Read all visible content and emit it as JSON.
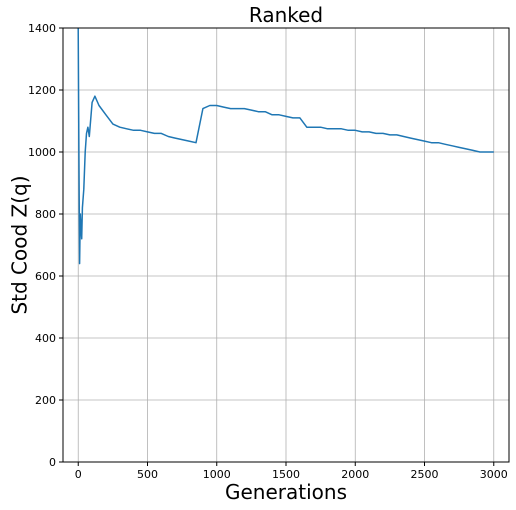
{
  "chart_data": {
    "type": "line",
    "title": "Ranked",
    "xlabel": "Generations",
    "ylabel": "Std Cood Z(q)",
    "xlim": [
      -110,
      3110
    ],
    "ylim": [
      0,
      1400
    ],
    "xticks": [
      0,
      500,
      1000,
      1500,
      2000,
      2500,
      3000
    ],
    "yticks": [
      0,
      200,
      400,
      600,
      800,
      1000,
      1200,
      1400
    ],
    "grid": true,
    "line_color": "#1f77b4",
    "series": [
      {
        "x": [
          0,
          5,
          10,
          15,
          20,
          25,
          30,
          40,
          50,
          60,
          70,
          80,
          100,
          120,
          150,
          200,
          250,
          300,
          350,
          400,
          450,
          500,
          550,
          600,
          650,
          700,
          750,
          800,
          850,
          900,
          950,
          1000,
          1050,
          1100,
          1150,
          1200,
          1250,
          1300,
          1350,
          1400,
          1450,
          1500,
          1550,
          1600,
          1650,
          1700,
          1750,
          1800,
          1850,
          1900,
          1950,
          2000,
          2050,
          2100,
          2150,
          2200,
          2250,
          2300,
          2350,
          2400,
          2450,
          2500,
          2550,
          2600,
          2650,
          2700,
          2750,
          2800,
          2850,
          2900,
          2950,
          3000
        ],
        "y": [
          1400,
          1000,
          640,
          800,
          760,
          720,
          820,
          880,
          1000,
          1060,
          1080,
          1050,
          1160,
          1180,
          1150,
          1120,
          1090,
          1080,
          1075,
          1070,
          1070,
          1065,
          1060,
          1060,
          1050,
          1045,
          1040,
          1035,
          1030,
          1140,
          1150,
          1150,
          1145,
          1140,
          1140,
          1140,
          1135,
          1130,
          1130,
          1120,
          1120,
          1115,
          1110,
          1110,
          1080,
          1080,
          1080,
          1075,
          1075,
          1075,
          1070,
          1070,
          1065,
          1065,
          1060,
          1060,
          1055,
          1055,
          1050,
          1045,
          1040,
          1035,
          1030,
          1030,
          1025,
          1020,
          1015,
          1010,
          1005,
          1000,
          1000,
          1000
        ]
      }
    ]
  }
}
